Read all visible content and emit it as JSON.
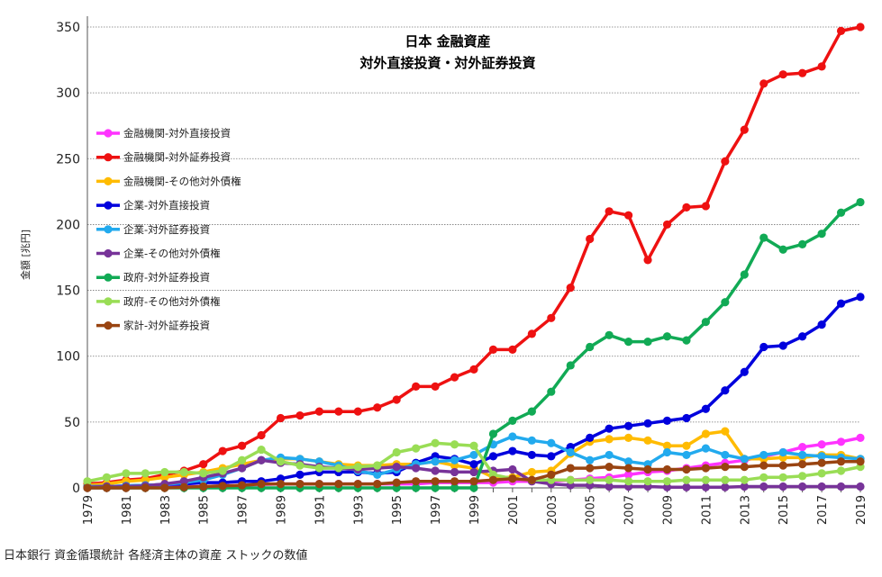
{
  "source_note": "日本銀行 資金循環統計 各経済主体の資産 ストックの数値",
  "chart_data": {
    "type": "line",
    "title_lines": [
      "日本 金融資産",
      "対外直接投資・対外証券投資"
    ],
    "ylabel": "金額 [兆円]",
    "xlabel": "",
    "ylim": [
      0,
      350
    ],
    "yticks": [
      0,
      50,
      100,
      150,
      200,
      250,
      300,
      350
    ],
    "grid": true,
    "legend_position": "left",
    "x": [
      1979,
      1980,
      1981,
      1982,
      1983,
      1984,
      1985,
      1986,
      1987,
      1988,
      1989,
      1990,
      1991,
      1992,
      1993,
      1994,
      1995,
      1996,
      1997,
      1998,
      1999,
      2000,
      2001,
      2002,
      2003,
      2004,
      2005,
      2006,
      2007,
      2008,
      2009,
      2010,
      2011,
      2012,
      2013,
      2014,
      2015,
      2016,
      2017,
      2018,
      2019
    ],
    "xtick_labels": [
      "1979",
      "1981",
      "1983",
      "1985",
      "1987",
      "1989",
      "1991",
      "1993",
      "1995",
      "1997",
      "1999",
      "2001",
      "2003",
      "2005",
      "2007",
      "2009",
      "2011",
      "2013",
      "2015",
      "2017",
      "2019"
    ],
    "series": [
      {
        "name": "金融機関-対外直接投資",
        "color": "#ff33ff",
        "values": [
          0,
          0,
          0,
          0.5,
          0.5,
          1,
          1,
          1.5,
          2,
          2.5,
          3,
          3,
          3,
          3,
          3,
          3,
          3,
          3,
          4,
          4,
          4,
          4,
          5,
          5,
          5,
          6,
          7,
          8,
          10,
          12,
          13,
          15,
          17,
          19,
          21,
          24,
          27,
          31,
          33,
          35,
          38
        ]
      },
      {
        "name": "金融機関-対外証券投資",
        "color": "#ee1111",
        "values": [
          3,
          4,
          6,
          7,
          10,
          13,
          18,
          28,
          32,
          40,
          53,
          55,
          58,
          58,
          58,
          61,
          67,
          77,
          77,
          84,
          90,
          105,
          105,
          117,
          129,
          152,
          189,
          210,
          207,
          173,
          200,
          213,
          214,
          248,
          272,
          307,
          314,
          315,
          320,
          347,
          350
        ]
      },
      {
        "name": "金融機関-その他対外債権",
        "color": "#ffbb00",
        "values": [
          2,
          3,
          5,
          6,
          8,
          10,
          12,
          15,
          18,
          21,
          22,
          22,
          20,
          18,
          17,
          17,
          18,
          18,
          20,
          17,
          15,
          8,
          8,
          12,
          13,
          26,
          35,
          37,
          38,
          36,
          32,
          32,
          41,
          43,
          22,
          22,
          23,
          23,
          25,
          25,
          22
        ]
      },
      {
        "name": "企業-対外直接投資",
        "color": "#0000dd",
        "values": [
          1,
          1,
          1.5,
          2,
          2.5,
          3,
          4,
          4,
          5,
          5,
          7,
          10,
          12,
          12,
          12,
          11,
          12,
          19,
          24,
          22,
          18,
          24,
          28,
          25,
          24,
          31,
          38,
          45,
          47,
          49,
          51,
          53,
          60,
          74,
          88,
          107,
          108,
          115,
          124,
          140,
          145
        ]
      },
      {
        "name": "企業-対外証券投資",
        "color": "#22aaee",
        "values": [
          1,
          1,
          1.5,
          2,
          2.5,
          4,
          6,
          10,
          15,
          21,
          23,
          22,
          20,
          17,
          13,
          10,
          14,
          18,
          20,
          21,
          25,
          33,
          39,
          36,
          34,
          27,
          21,
          25,
          20,
          18,
          27,
          25,
          30,
          25,
          22,
          25,
          27,
          25,
          24,
          23,
          22
        ]
      },
      {
        "name": "企業-その他対外債権",
        "color": "#773399",
        "values": [
          0.5,
          1,
          1,
          1.5,
          3,
          5,
          8,
          11,
          15,
          21,
          19,
          18,
          16,
          15,
          14,
          15,
          16,
          15,
          13,
          12,
          12,
          13,
          14,
          5,
          3,
          2,
          2,
          1,
          1,
          1,
          0.5,
          0.5,
          0.5,
          0.5,
          1,
          1,
          1,
          1,
          1,
          1,
          1
        ]
      },
      {
        "name": "政府-対外証券投資",
        "color": "#11aa55",
        "values": [
          0,
          0,
          0,
          0,
          0,
          0,
          0,
          0,
          0,
          0,
          0,
          0,
          0,
          0,
          0,
          0,
          0,
          0,
          0,
          0,
          0,
          41,
          51,
          58,
          73,
          93,
          107,
          116,
          111,
          111,
          115,
          112,
          126,
          141,
          162,
          190,
          181,
          185,
          193,
          209,
          217
        ]
      },
      {
        "name": "政府-その他対外債権",
        "color": "#99dd55",
        "values": [
          5,
          8,
          11,
          11,
          12,
          12,
          11,
          13,
          21,
          29,
          20,
          17,
          15,
          15,
          16,
          17,
          27,
          30,
          34,
          33,
          32,
          10,
          7,
          6,
          6,
          6,
          6,
          6,
          5,
          5,
          5,
          6,
          6,
          6,
          6,
          8,
          8,
          9,
          11,
          13,
          16
        ]
      },
      {
        "name": "家計-対外証券投資",
        "color": "#994411",
        "values": [
          0,
          0,
          0,
          0,
          0,
          0.5,
          1,
          1.5,
          2,
          3,
          3,
          3,
          3,
          3,
          3,
          3,
          4,
          5,
          5,
          5,
          5,
          6,
          7,
          6,
          10,
          15,
          15,
          16,
          15,
          14,
          14,
          14,
          15,
          16,
          16,
          17,
          17,
          18,
          19,
          20,
          20
        ]
      }
    ]
  }
}
